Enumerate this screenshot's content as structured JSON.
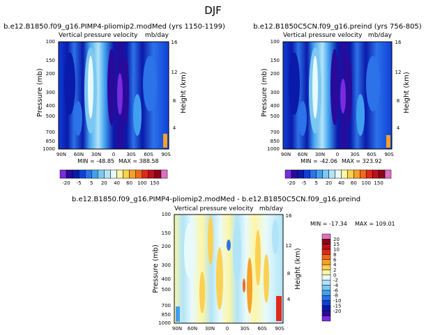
{
  "season": "DJF",
  "colors": {
    "abs_scale": [
      "#7a2be0",
      "#2a0a9a",
      "#0a1aaa",
      "#1040d8",
      "#2c72e8",
      "#40a0f0",
      "#7cc8f4",
      "#b2e4f8",
      "#e8fafc",
      "#fdf6a6",
      "#fcd050",
      "#f8a028",
      "#ef6a1c",
      "#df2a1c",
      "#bc101c",
      "#8a0418",
      "#e070c4"
    ],
    "diff_scale": [
      "#7a2be0",
      "#2a0a9a",
      "#0a1aaa",
      "#1040d8",
      "#2c72e8",
      "#40a0f0",
      "#7cc8f4",
      "#b2e4f8",
      "#e8fafc",
      "#fdf6a6",
      "#fcd050",
      "#f8a028",
      "#ef6a1c",
      "#df2a1c",
      "#bc101c",
      "#8a0418",
      "#e070c4"
    ]
  },
  "chart_data": [
    {
      "type": "heatmap",
      "title": "b.e12.B1850.f09_g16.PIMP4-pliomip2.modMed (yrs 1150-1199)",
      "subtitle_left": "Vertical pressure velocity",
      "subtitle_right": "mb/day",
      "ylabel": "Pressure (mb)",
      "ylabel_right": "Height (km)",
      "x_ticks": [
        "90N",
        "60N",
        "30N",
        "0",
        "30S",
        "60S",
        "90S"
      ],
      "y_ticks": [
        "100",
        "150",
        "200",
        "300",
        "400",
        "500",
        "700",
        "850",
        "1000"
      ],
      "height_ticks": [
        "16",
        "12",
        "8",
        "4"
      ],
      "min_label": "MIN = -48.85",
      "max_label": "MAX = 388.58"
    },
    {
      "type": "heatmap",
      "title": "b.e12.B1850C5CN.f09_g16.preind (yrs 756-805)",
      "subtitle_left": "Vertical pressure velocity",
      "subtitle_right": "mb/day",
      "ylabel": "Pressure (mb)",
      "ylabel_right": "Height (km)",
      "x_ticks": [
        "90N",
        "60N",
        "30N",
        "0",
        "30S",
        "60S",
        "90S"
      ],
      "y_ticks": [
        "100",
        "150",
        "200",
        "300",
        "400",
        "500",
        "700",
        "850",
        "1000"
      ],
      "height_ticks": [
        "16",
        "12",
        "8",
        "4"
      ],
      "min_label": "MIN = -42.06",
      "max_label": "MAX = 323.92"
    },
    {
      "type": "heatmap",
      "title": "b.e12.B1850.f09_g16.PIMP4-pliomip2.modMed - b.e12.B1850C5CN.f09_g16.preind",
      "subtitle_left": "Vertical pressure velocity",
      "subtitle_right": "mb/day",
      "ylabel": "Pressure (mb)",
      "ylabel_right": "Height (km)",
      "x_ticks": [
        "90N",
        "60N",
        "30N",
        "0",
        "30S",
        "60S",
        "90S"
      ],
      "y_ticks": [
        "100",
        "150",
        "200",
        "300",
        "400",
        "500",
        "700",
        "850",
        "1000"
      ],
      "height_ticks": [
        "16",
        "12",
        "8",
        "4"
      ],
      "min_label": "MIN = -17.34",
      "max_label": "MAX = 109.01"
    }
  ],
  "colorbar_abs": {
    "labels": [
      "-20",
      "-5",
      "5",
      "20",
      "40",
      "60",
      "100",
      "150"
    ]
  },
  "colorbar_diff": {
    "labels": [
      "20",
      "15",
      "10",
      "8",
      "6",
      "4",
      "2",
      "0",
      "-2",
      "-4",
      "-6",
      "-8",
      "-10",
      "-15",
      "-20"
    ]
  }
}
